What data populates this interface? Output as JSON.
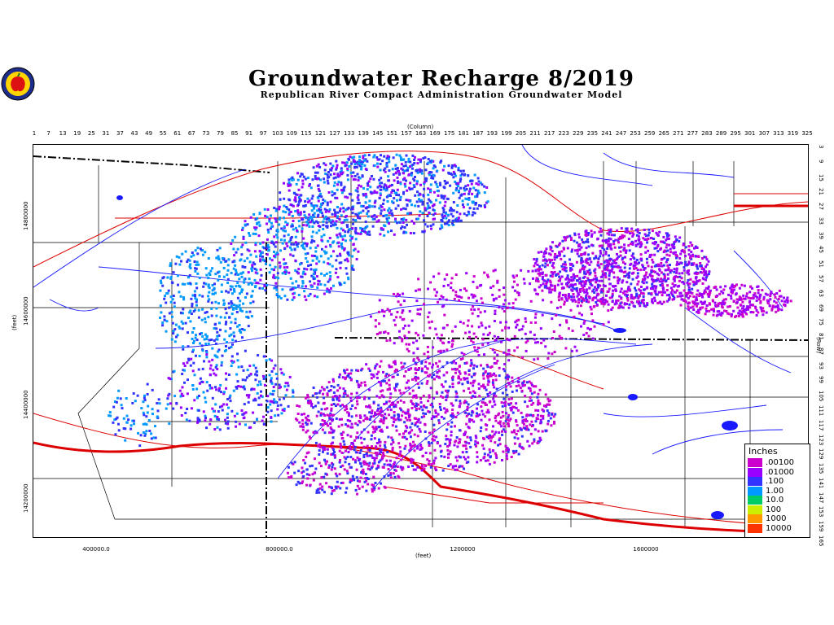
{
  "header": {
    "title": "Groundwater Recharge 8/2019",
    "subtitle": "Republican River Compact Administration Groundwater Model"
  },
  "axes": {
    "column_label": "(Column)",
    "row_label": "(Row)",
    "feet_label_y": "(feet)",
    "feet_label_x": "(feet)",
    "column_ticks": [
      "1",
      "7",
      "13",
      "19",
      "25",
      "31",
      "37",
      "43",
      "49",
      "55",
      "61",
      "67",
      "73",
      "79",
      "85",
      "91",
      "97",
      "103",
      "109",
      "115",
      "121",
      "127",
      "133",
      "139",
      "145",
      "151",
      "157",
      "163",
      "169",
      "175",
      "181",
      "187",
      "193",
      "199",
      "205",
      "211",
      "217",
      "223",
      "229",
      "235",
      "241",
      "247",
      "253",
      "259",
      "265",
      "271",
      "277",
      "283",
      "289",
      "295",
      "301",
      "307",
      "313",
      "319",
      "325"
    ],
    "row_ticks": [
      "3",
      "9",
      "15",
      "21",
      "27",
      "33",
      "39",
      "45",
      "51",
      "57",
      "63",
      "69",
      "75",
      "81",
      "87",
      "93",
      "99",
      "105",
      "111",
      "117",
      "123",
      "129",
      "135",
      "141",
      "147",
      "153",
      "159",
      "165"
    ],
    "y_ticks": [
      "14800000",
      "14600000",
      "14400000",
      "14200000"
    ],
    "x_ticks": [
      "400000.0",
      "800000.0",
      "1200000",
      "1600000"
    ]
  },
  "legend": {
    "title": "Inches",
    "entries": [
      {
        "label": ".00100",
        "color": "#cc00cc"
      },
      {
        "label": ".01000",
        "color": "#9900ff"
      },
      {
        "label": ".100",
        "color": "#3333ff"
      },
      {
        "label": "1.00",
        "color": "#0099ff"
      },
      {
        "label": "10.0",
        "color": "#00cc66"
      },
      {
        "label": "100",
        "color": "#ccee00"
      },
      {
        "label": "1000",
        "color": "#ff9900"
      },
      {
        "label": "10000",
        "color": "#ff3300"
      }
    ]
  },
  "colors": {
    "county_lines": "#000000",
    "highways": "#dd0000",
    "streams": "#1a1aff",
    "state_line": "#000000"
  }
}
